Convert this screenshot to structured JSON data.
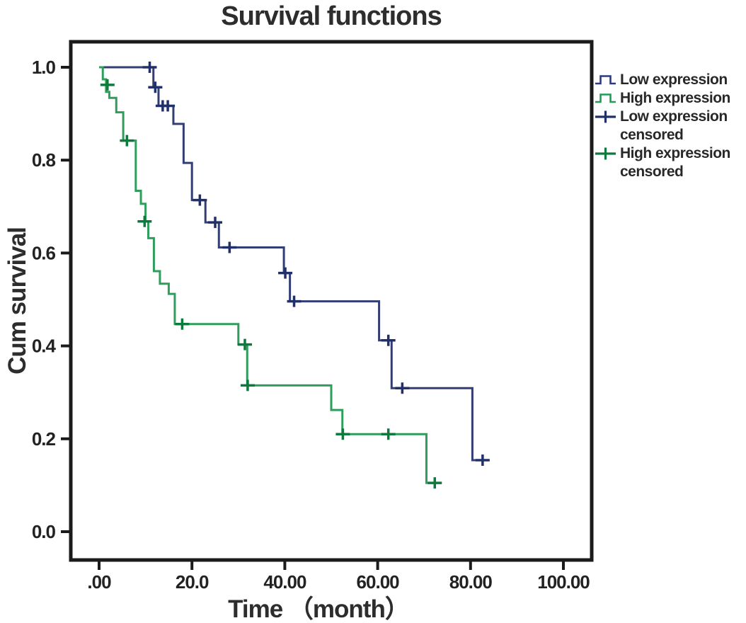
{
  "title": "Survival functions",
  "axes": {
    "x": {
      "label": "Time （month）",
      "ticks": [
        {
          "v": 0,
          "label": ".00"
        },
        {
          "v": 20,
          "label": "20.0"
        },
        {
          "v": 40,
          "label": "40.00"
        },
        {
          "v": 60,
          "label": "60.00"
        },
        {
          "v": 80,
          "label": "80.00"
        },
        {
          "v": 100,
          "label": "100.00"
        }
      ]
    },
    "y": {
      "label": "Cum survival",
      "ticks": [
        {
          "v": 0.0,
          "label": "0.0"
        },
        {
          "v": 0.2,
          "label": "0.2"
        },
        {
          "v": 0.4,
          "label": "0.4"
        },
        {
          "v": 0.6,
          "label": "0.6"
        },
        {
          "v": 0.8,
          "label": "0.8"
        },
        {
          "v": 1.0,
          "label": "1.0"
        }
      ]
    }
  },
  "legend": [
    {
      "label": "Low expression",
      "type": "step",
      "color": "#2c3a84"
    },
    {
      "label": "High expression",
      "type": "step",
      "color": "#1f9d57"
    },
    {
      "label": "Low expression censored",
      "type": "plus",
      "color": "#22306a"
    },
    {
      "label": "High expression censored",
      "type": "plus",
      "color": "#0c7a3d"
    }
  ],
  "colors": {
    "frame": "#1b1b1b",
    "tick_text": "#222222",
    "low_line": "#333e74",
    "low_censor": "#22306a",
    "high_line": "#2f9e5c",
    "high_censor": "#0c7a3d"
  },
  "chart_data": {
    "type": "line",
    "subtype": "kaplan-meier-step-survival",
    "title": "Survival functions",
    "xlabel": "Time （month）",
    "ylabel": "Cum survival",
    "xlim": [
      -6,
      106
    ],
    "ylim": [
      -0.05,
      1.05
    ],
    "xticks": [
      0,
      20,
      40,
      60,
      80,
      100
    ],
    "yticks": [
      0.0,
      0.2,
      0.4,
      0.6,
      0.8,
      1.0
    ],
    "grid": false,
    "legend_position": "top-right",
    "series": [
      {
        "name": "Low expression",
        "color": "#333e74",
        "censor_color": "#22306a",
        "steps": [
          [
            0,
            1.0
          ],
          [
            11.7,
            0.957
          ],
          [
            12.8,
            0.917
          ],
          [
            16.0,
            0.878
          ],
          [
            18.2,
            0.794
          ],
          [
            20.0,
            0.714
          ],
          [
            22.9,
            0.666
          ],
          [
            25.8,
            0.612
          ],
          [
            39.8,
            0.557
          ],
          [
            41.1,
            0.496
          ],
          [
            60.3,
            0.412
          ],
          [
            63.0,
            0.309
          ],
          [
            80.4,
            0.154
          ]
        ],
        "end_time": 82.8,
        "censored": [
          [
            10.9,
            1.0
          ],
          [
            12.1,
            0.957
          ],
          [
            13.7,
            0.917
          ],
          [
            14.8,
            0.917
          ],
          [
            21.7,
            0.714
          ],
          [
            25.0,
            0.666
          ],
          [
            28.1,
            0.612
          ],
          [
            40.1,
            0.557
          ],
          [
            42.0,
            0.496
          ],
          [
            62.3,
            0.412
          ],
          [
            65.3,
            0.309
          ],
          [
            82.6,
            0.154
          ]
        ]
      },
      {
        "name": "High expression",
        "color": "#2f9e5c",
        "censor_color": "#0c7a3d",
        "steps": [
          [
            0,
            1.0
          ],
          [
            0.8,
            0.974
          ],
          [
            1.5,
            0.947
          ],
          [
            2.2,
            0.934
          ],
          [
            3.7,
            0.903
          ],
          [
            5.2,
            0.842
          ],
          [
            7.9,
            0.734
          ],
          [
            9.0,
            0.706
          ],
          [
            10.0,
            0.668
          ],
          [
            10.6,
            0.632
          ],
          [
            11.8,
            0.561
          ],
          [
            13.1,
            0.534
          ],
          [
            15.0,
            0.512
          ],
          [
            16.3,
            0.447
          ],
          [
            30.0,
            0.403
          ],
          [
            31.9,
            0.315
          ],
          [
            50.0,
            0.262
          ],
          [
            52.4,
            0.21
          ],
          [
            70.5,
            0.105
          ]
        ],
        "end_time": 72.6,
        "censored": [
          [
            1.8,
            0.962
          ],
          [
            6.0,
            0.842
          ],
          [
            9.8,
            0.668
          ],
          [
            17.9,
            0.447
          ],
          [
            31.4,
            0.403
          ],
          [
            32.0,
            0.315
          ],
          [
            52.5,
            0.21
          ],
          [
            62.3,
            0.21
          ],
          [
            72.3,
            0.105
          ]
        ]
      }
    ]
  }
}
